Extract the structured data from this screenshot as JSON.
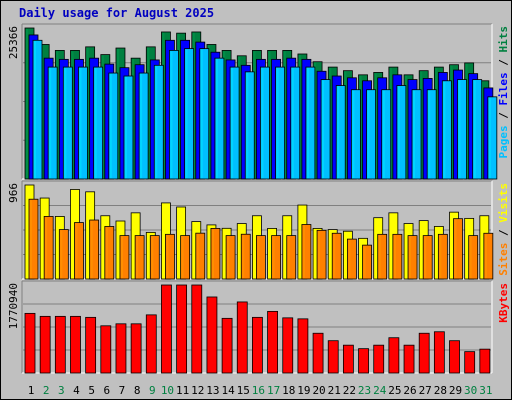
{
  "title": "Daily usage for August 2025",
  "colors": {
    "hits": "#008040",
    "files": "#0000ff",
    "pages": "#00c0ff",
    "visits": "#ffff00",
    "sites": "#ff8000",
    "kbytes": "#ff0000",
    "weekday_label": "#000000",
    "weekend_label": "#008040"
  },
  "chart_data": [
    {
      "type": "bar",
      "categories": [
        "1",
        "2",
        "3",
        "4",
        "5",
        "6",
        "7",
        "8",
        "9",
        "10",
        "11",
        "12",
        "13",
        "14",
        "15",
        "16",
        "17",
        "18",
        "19",
        "20",
        "21",
        "22",
        "23",
        "24",
        "25",
        "26",
        "27",
        "28",
        "29",
        "30",
        "31"
      ],
      "weekend_days": [
        "2",
        "3",
        "9",
        "10",
        "16",
        "17",
        "23",
        "24",
        "30",
        "31"
      ],
      "ymax_label": "25366",
      "ylim": [
        0,
        25366
      ],
      "axis_title": [
        {
          "text": "Pages",
          "color": "#00c0ff"
        },
        {
          "text": " / ",
          "color": "#000000"
        },
        {
          "text": "Files",
          "color": "#0000ff"
        },
        {
          "text": " / ",
          "color": "#000000"
        },
        {
          "text": "Hits",
          "color": "#008040"
        }
      ],
      "series": [
        {
          "name": "Hits",
          "color": "#008040",
          "values": [
            25366,
            22600,
            21600,
            21600,
            22200,
            20900,
            22000,
            20300,
            22200,
            24700,
            24500,
            24700,
            22600,
            21600,
            20700,
            21600,
            21600,
            21600,
            21000,
            19700,
            18800,
            18200,
            17500,
            17900,
            18800,
            17500,
            18200,
            18800,
            19200,
            19500,
            16500
          ]
        },
        {
          "name": "Files",
          "color": "#0000ff",
          "values": [
            24200,
            20300,
            20100,
            20100,
            20300,
            19300,
            18700,
            19200,
            20000,
            23300,
            23300,
            23000,
            21300,
            20000,
            19100,
            20100,
            20100,
            20300,
            20100,
            18100,
            17300,
            17000,
            16500,
            17000,
            17500,
            16700,
            16900,
            17900,
            18300,
            17700,
            15300
          ]
        },
        {
          "name": "Pages",
          "color": "#00c0ff",
          "values": [
            23300,
            18800,
            18800,
            18800,
            18800,
            17800,
            17300,
            17800,
            19100,
            21600,
            21900,
            21900,
            20300,
            18800,
            18000,
            18800,
            18800,
            18800,
            18800,
            16700,
            15700,
            15000,
            15000,
            15000,
            15700,
            15000,
            15000,
            16500,
            16700,
            16700,
            13800
          ]
        }
      ]
    },
    {
      "type": "bar",
      "categories": [
        "1",
        "2",
        "3",
        "4",
        "5",
        "6",
        "7",
        "8",
        "9",
        "10",
        "11",
        "12",
        "13",
        "14",
        "15",
        "16",
        "17",
        "18",
        "19",
        "20",
        "21",
        "22",
        "23",
        "24",
        "25",
        "26",
        "27",
        "28",
        "29",
        "30",
        "31"
      ],
      "ymax_label": "966",
      "ylim": [
        0,
        966
      ],
      "axis_title": [
        {
          "text": "Sites",
          "color": "#ff8000"
        },
        {
          "text": " / ",
          "color": "#000000"
        },
        {
          "text": "Visits",
          "color": "#ffff00"
        }
      ],
      "series": [
        {
          "name": "Visits",
          "color": "#ffff00",
          "values": [
            966,
            832,
            643,
            920,
            896,
            650,
            596,
            680,
            479,
            782,
            740,
            590,
            556,
            521,
            570,
            650,
            520,
            650,
            760,
            520,
            508,
            491,
            418,
            630,
            680,
            570,
            600,
            540,
            687,
            623,
            650
          ]
        },
        {
          "name": "Sites",
          "color": "#ff8000",
          "values": [
            820,
            643,
            508,
            580,
            606,
            540,
            446,
            446,
            446,
            459,
            446,
            471,
            520,
            446,
            460,
            446,
            446,
            446,
            560,
            500,
            470,
            410,
            348,
            459,
            459,
            446,
            446,
            459,
            620,
            446,
            470
          ]
        }
      ]
    },
    {
      "type": "bar",
      "categories": [
        "1",
        "2",
        "3",
        "4",
        "5",
        "6",
        "7",
        "8",
        "9",
        "10",
        "11",
        "12",
        "13",
        "14",
        "15",
        "16",
        "17",
        "18",
        "19",
        "20",
        "21",
        "22",
        "23",
        "24",
        "25",
        "26",
        "27",
        "28",
        "29",
        "30",
        "31"
      ],
      "ymax_label": "1770940",
      "ylim": [
        0,
        1770940
      ],
      "axis_title": [
        {
          "text": "KBytes",
          "color": "#ff0000"
        }
      ],
      "series": [
        {
          "name": "KBytes",
          "color": "#ff0000",
          "values": [
            1200000,
            1140000,
            1140000,
            1140000,
            1120000,
            950000,
            990000,
            990000,
            1170000,
            1770940,
            1770940,
            1770940,
            1530000,
            1100000,
            1430000,
            1120000,
            1240000,
            1110000,
            1090000,
            800000,
            650000,
            560000,
            490000,
            560000,
            710000,
            560000,
            800000,
            830000,
            650000,
            430000,
            480000
          ]
        }
      ]
    }
  ]
}
